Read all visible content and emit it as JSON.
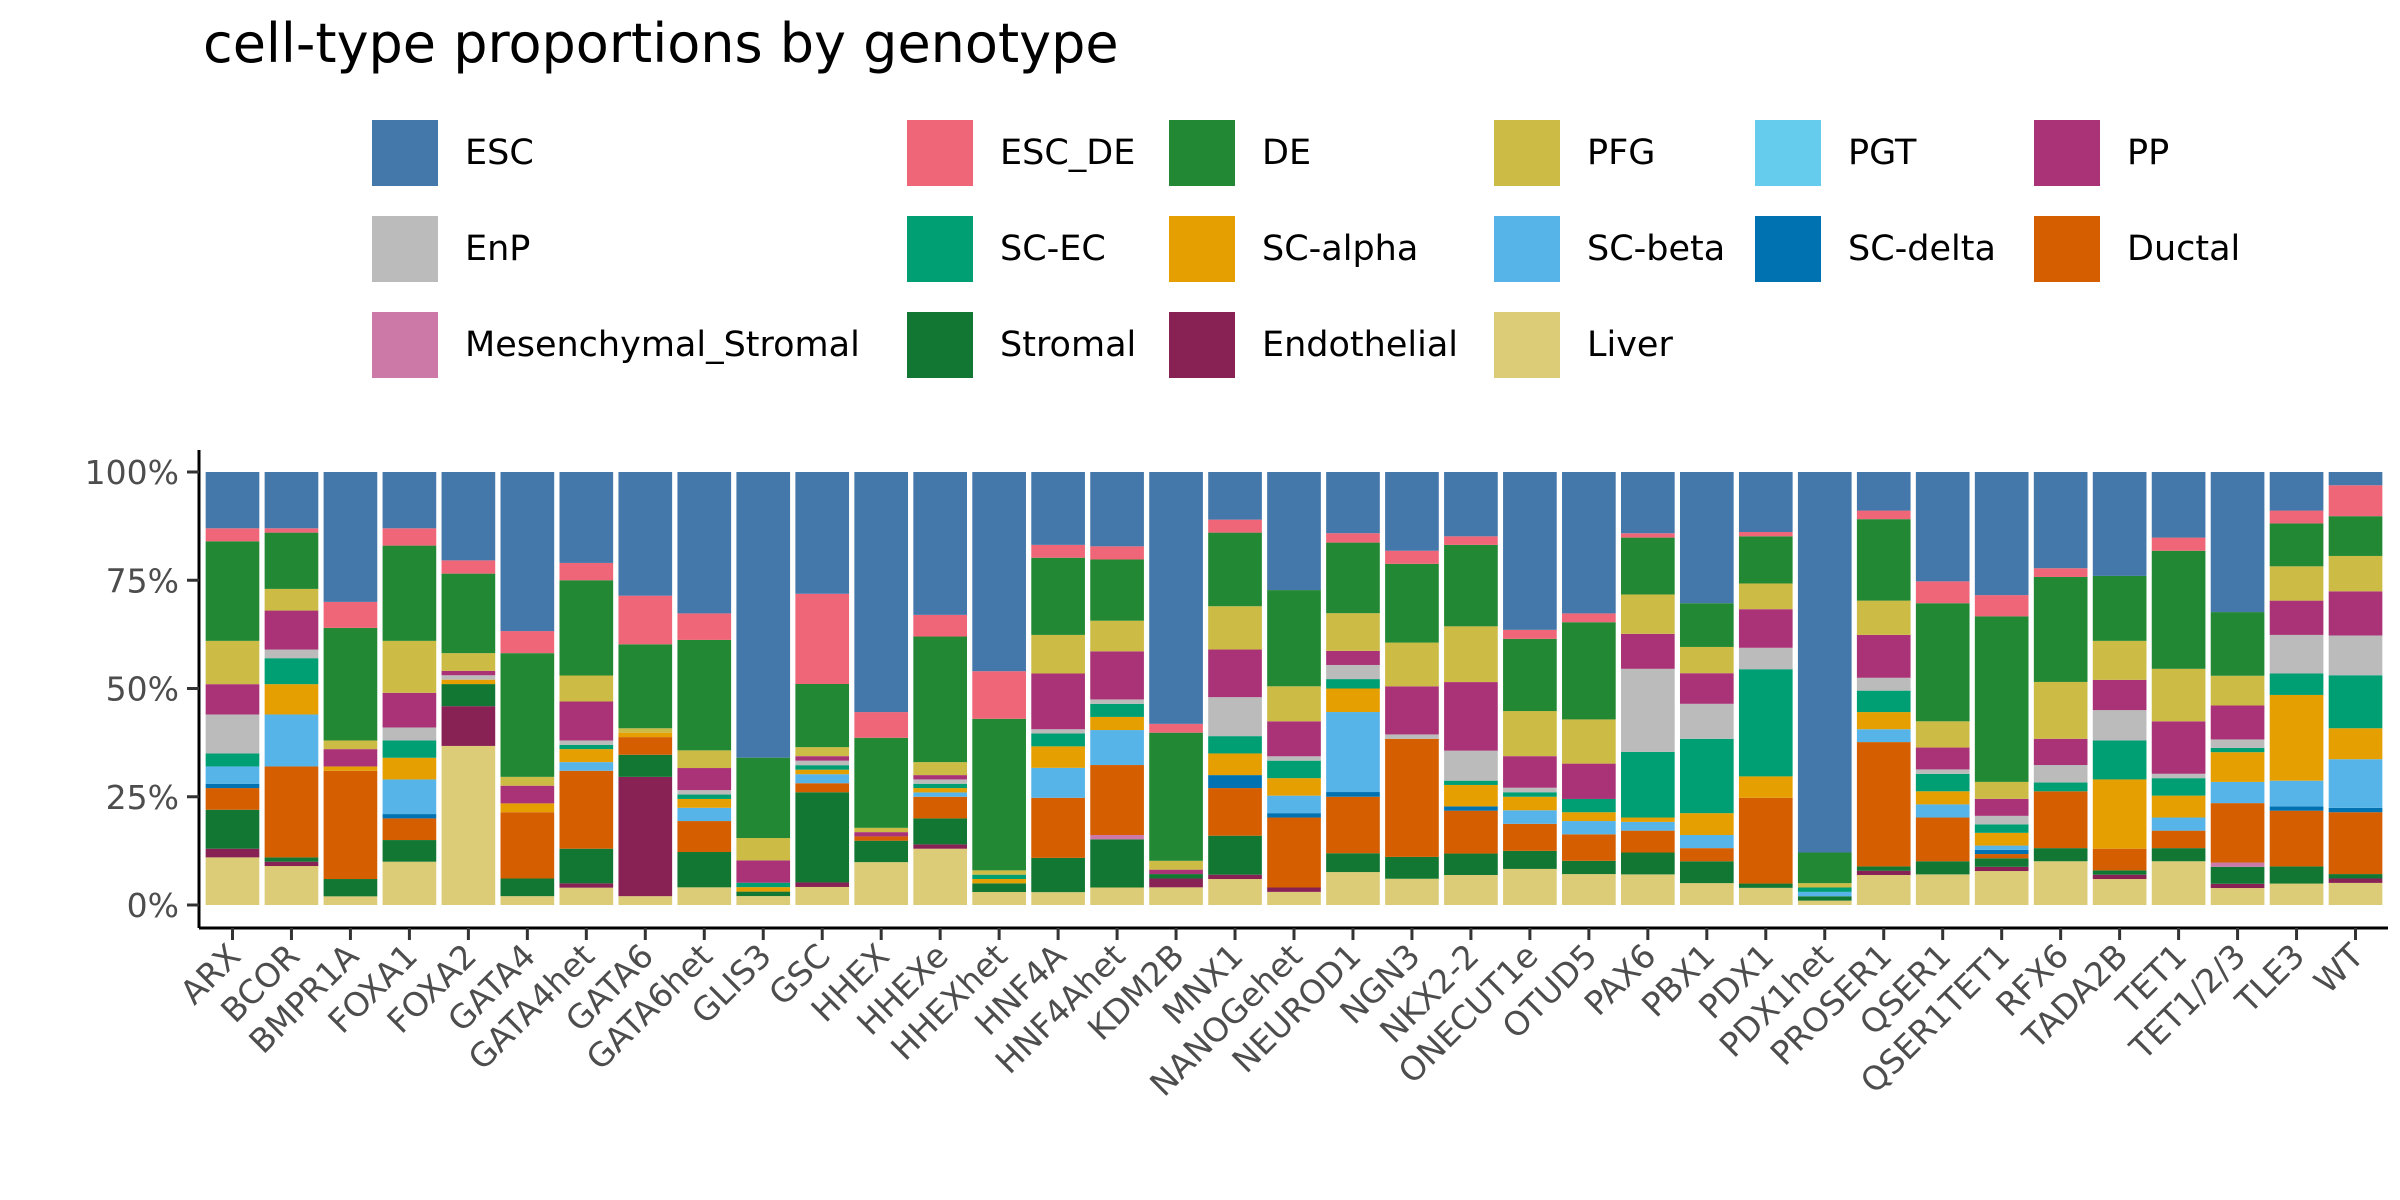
{
  "chart_data": {
    "type": "bar",
    "stacked": true,
    "percent": true,
    "title": "cell-type proportions by genotype",
    "xlabel": "",
    "ylabel": "",
    "ylim": [
      0,
      1
    ],
    "yticks": [
      {
        "value": 0,
        "label": "0%"
      },
      {
        "value": 0.25,
        "label": "25%"
      },
      {
        "value": 0.5,
        "label": "50%"
      },
      {
        "value": 0.75,
        "label": "75%"
      },
      {
        "value": 1,
        "label": "100%"
      }
    ],
    "grid": false,
    "legend_position": "top",
    "categories": [
      "ARX",
      "BCOR",
      "BMPR1A",
      "FOXA1",
      "FOXA2",
      "GATA4",
      "GATA4het",
      "GATA6",
      "GATA6het",
      "GLIS3",
      "GSC",
      "HHEX",
      "HHEXe",
      "HHEXhet",
      "HNF4A",
      "HNF4Ahet",
      "KDM2B",
      "MNX1",
      "NANOGehet",
      "NEUROD1",
      "NGN3",
      "NKX2-2",
      "ONECUT1e",
      "OTUD5",
      "PAX6",
      "PBX1",
      "PDX1",
      "PDX1het",
      "PROSER1",
      "QSER1",
      "QSER1TET1",
      "RFX6",
      "TADA2B",
      "TET1",
      "TET1/2/3",
      "TLE3",
      "WT"
    ],
    "series": [
      {
        "name": "Liver",
        "color": "#DDCC77",
        "values": [
          0.11,
          0.09,
          0.02,
          0.1,
          0.36,
          0.02,
          0.04,
          0.02,
          0.04,
          0.02,
          0.04,
          0.1,
          0.13,
          0.03,
          0.03,
          0.04,
          0.04,
          0.06,
          0.03,
          0.07,
          0.06,
          0.07,
          0.08,
          0.07,
          0.07,
          0.05,
          0.04,
          0.01,
          0.07,
          0.07,
          0.08,
          0.1,
          0.06,
          0.1,
          0.04,
          0.05,
          0.05
        ]
      },
      {
        "name": "Endothelial",
        "color": "#882255",
        "values": [
          0.02,
          0.01,
          0.0,
          0.0,
          0.09,
          0.0,
          0.01,
          0.27,
          0.0,
          0.0,
          0.01,
          0.0,
          0.01,
          0.0,
          0.0,
          0.0,
          0.02,
          0.01,
          0.01,
          0.0,
          0.0,
          0.0,
          0.0,
          0.0,
          0.0,
          0.0,
          0.0,
          0.0,
          0.01,
          0.0,
          0.01,
          0.0,
          0.01,
          0.0,
          0.01,
          0.0,
          0.01
        ]
      },
      {
        "name": "Stromal",
        "color": "#117733",
        "values": [
          0.09,
          0.01,
          0.04,
          0.05,
          0.05,
          0.04,
          0.08,
          0.05,
          0.08,
          0.01,
          0.2,
          0.05,
          0.06,
          0.02,
          0.08,
          0.11,
          0.01,
          0.09,
          0.0,
          0.04,
          0.05,
          0.05,
          0.04,
          0.03,
          0.05,
          0.05,
          0.01,
          0.01,
          0.01,
          0.03,
          0.02,
          0.03,
          0.01,
          0.03,
          0.04,
          0.04,
          0.01
        ]
      },
      {
        "name": "Mesenchymal_Stromal",
        "color": "#CC79A7",
        "values": [
          0.0,
          0.0,
          0.0,
          0.0,
          0.0,
          0.0,
          0.0,
          0.0,
          0.0,
          0.0,
          0.0,
          0.0,
          0.0,
          0.0,
          0.0,
          0.01,
          0.0,
          0.0,
          0.0,
          0.0,
          0.0,
          0.0,
          0.0,
          0.0,
          0.0,
          0.0,
          0.0,
          0.0,
          0.0,
          0.0,
          0.0,
          0.0,
          0.0,
          0.0,
          0.01,
          0.0,
          0.0
        ]
      },
      {
        "name": "Ductal",
        "color": "#D55E00",
        "values": [
          0.05,
          0.21,
          0.25,
          0.05,
          0.0,
          0.15,
          0.18,
          0.04,
          0.07,
          0.0,
          0.02,
          0.01,
          0.05,
          0.0,
          0.14,
          0.16,
          0.0,
          0.11,
          0.16,
          0.12,
          0.27,
          0.1,
          0.06,
          0.06,
          0.05,
          0.03,
          0.2,
          0.0,
          0.29,
          0.1,
          0.01,
          0.13,
          0.05,
          0.04,
          0.14,
          0.13,
          0.14
        ]
      },
      {
        "name": "SC-delta",
        "color": "#0072B2",
        "values": [
          0.01,
          0.0,
          0.0,
          0.01,
          0.0,
          0.0,
          0.0,
          0.0,
          0.0,
          0.0,
          0.0,
          0.0,
          0.0,
          0.0,
          0.0,
          0.0,
          0.0,
          0.03,
          0.01,
          0.01,
          0.0,
          0.01,
          0.0,
          0.0,
          0.0,
          0.0,
          0.0,
          0.0,
          0.0,
          0.0,
          0.01,
          0.0,
          0.0,
          0.0,
          0.0,
          0.01,
          0.01
        ]
      },
      {
        "name": "SC-beta",
        "color": "#56B4E9",
        "values": [
          0.04,
          0.12,
          0.0,
          0.08,
          0.0,
          0.0,
          0.02,
          0.0,
          0.03,
          0.0,
          0.02,
          0.0,
          0.01,
          0.0,
          0.07,
          0.08,
          0.0,
          0.0,
          0.04,
          0.17,
          0.0,
          0.0,
          0.03,
          0.03,
          0.02,
          0.03,
          0.0,
          0.01,
          0.03,
          0.03,
          0.01,
          0.0,
          0.0,
          0.03,
          0.05,
          0.06,
          0.11
        ]
      },
      {
        "name": "SC-alpha",
        "color": "#E69F00",
        "values": [
          0.0,
          0.07,
          0.01,
          0.05,
          0.01,
          0.02,
          0.03,
          0.01,
          0.02,
          0.01,
          0.01,
          0.0,
          0.01,
          0.01,
          0.05,
          0.03,
          0.0,
          0.05,
          0.04,
          0.05,
          0.0,
          0.05,
          0.03,
          0.02,
          0.01,
          0.05,
          0.05,
          0.0,
          0.04,
          0.03,
          0.03,
          0.0,
          0.16,
          0.05,
          0.07,
          0.2,
          0.07
        ]
      },
      {
        "name": "SC-EC",
        "color": "#009E73",
        "values": [
          0.03,
          0.06,
          0.0,
          0.04,
          0.0,
          0.0,
          0.01,
          0.0,
          0.01,
          0.01,
          0.01,
          0.0,
          0.01,
          0.01,
          0.03,
          0.03,
          0.0,
          0.04,
          0.04,
          0.02,
          0.0,
          0.01,
          0.01,
          0.03,
          0.15,
          0.17,
          0.25,
          0.01,
          0.05,
          0.04,
          0.02,
          0.02,
          0.09,
          0.04,
          0.01,
          0.05,
          0.12
        ]
      },
      {
        "name": "EnP",
        "color": "#BBBBBB",
        "values": [
          0.09,
          0.02,
          0.0,
          0.03,
          0.01,
          0.0,
          0.01,
          0.0,
          0.01,
          0.0,
          0.01,
          0.0,
          0.01,
          0.0,
          0.01,
          0.01,
          0.0,
          0.09,
          0.01,
          0.03,
          0.01,
          0.07,
          0.01,
          0.0,
          0.19,
          0.08,
          0.05,
          0.0,
          0.03,
          0.01,
          0.02,
          0.04,
          0.07,
          0.01,
          0.02,
          0.09,
          0.09
        ]
      },
      {
        "name": "PP",
        "color": "#AA3377",
        "values": [
          0.07,
          0.09,
          0.04,
          0.08,
          0.01,
          0.04,
          0.09,
          0.0,
          0.05,
          0.05,
          0.01,
          0.01,
          0.01,
          0.0,
          0.13,
          0.11,
          0.01,
          0.11,
          0.08,
          0.03,
          0.11,
          0.16,
          0.07,
          0.08,
          0.08,
          0.07,
          0.09,
          0.0,
          0.1,
          0.05,
          0.04,
          0.06,
          0.07,
          0.12,
          0.08,
          0.08,
          0.1
        ]
      },
      {
        "name": "PGT",
        "color": "#66CCEE",
        "values": [
          0.0,
          0.0,
          0.0,
          0.0,
          0.0,
          0.0,
          0.0,
          0.0,
          0.0,
          0.0,
          0.0,
          0.0,
          0.0,
          0.0,
          0.0,
          0.0,
          0.0,
          0.0,
          0.0,
          0.0,
          0.0,
          0.0,
          0.0,
          0.0,
          0.0,
          0.0,
          0.0,
          0.0,
          0.0,
          0.0,
          0.0,
          0.0,
          0.0,
          0.0,
          0.0,
          0.0,
          0.0
        ]
      },
      {
        "name": "PFG",
        "color": "#CCBB44",
        "values": [
          0.1,
          0.05,
          0.02,
          0.12,
          0.04,
          0.02,
          0.06,
          0.01,
          0.04,
          0.05,
          0.02,
          0.01,
          0.03,
          0.01,
          0.09,
          0.07,
          0.02,
          0.1,
          0.08,
          0.08,
          0.1,
          0.13,
          0.1,
          0.1,
          0.09,
          0.06,
          0.06,
          0.01,
          0.08,
          0.06,
          0.04,
          0.13,
          0.09,
          0.12,
          0.07,
          0.08,
          0.08
        ]
      },
      {
        "name": "DE",
        "color": "#228833",
        "values": [
          0.23,
          0.13,
          0.26,
          0.22,
          0.18,
          0.28,
          0.22,
          0.19,
          0.25,
          0.18,
          0.14,
          0.21,
          0.29,
          0.35,
          0.18,
          0.14,
          0.29,
          0.17,
          0.22,
          0.15,
          0.18,
          0.19,
          0.16,
          0.22,
          0.13,
          0.1,
          0.11,
          0.07,
          0.19,
          0.27,
          0.39,
          0.24,
          0.15,
          0.27,
          0.15,
          0.1,
          0.09
        ]
      },
      {
        "name": "ESC_DE",
        "color": "#EE6677",
        "values": [
          0.03,
          0.01,
          0.06,
          0.04,
          0.03,
          0.05,
          0.04,
          0.11,
          0.06,
          0.0,
          0.2,
          0.06,
          0.05,
          0.11,
          0.03,
          0.03,
          0.02,
          0.03,
          0.0,
          0.02,
          0.03,
          0.02,
          0.02,
          0.02,
          0.01,
          0.0,
          0.01,
          0.0,
          0.02,
          0.05,
          0.05,
          0.02,
          0.0,
          0.03,
          0.0,
          0.03,
          0.07
        ]
      },
      {
        "name": "ESC",
        "color": "#4477AA",
        "values": [
          0.13,
          0.13,
          0.3,
          0.13,
          0.2,
          0.36,
          0.21,
          0.28,
          0.32,
          0.64,
          0.27,
          0.56,
          0.33,
          0.46,
          0.17,
          0.17,
          0.57,
          0.11,
          0.27,
          0.13,
          0.18,
          0.15,
          0.35,
          0.32,
          0.14,
          0.3,
          0.14,
          0.87,
          0.09,
          0.25,
          0.29,
          0.22,
          0.24,
          0.15,
          0.33,
          0.09,
          0.03
        ]
      }
    ]
  }
}
